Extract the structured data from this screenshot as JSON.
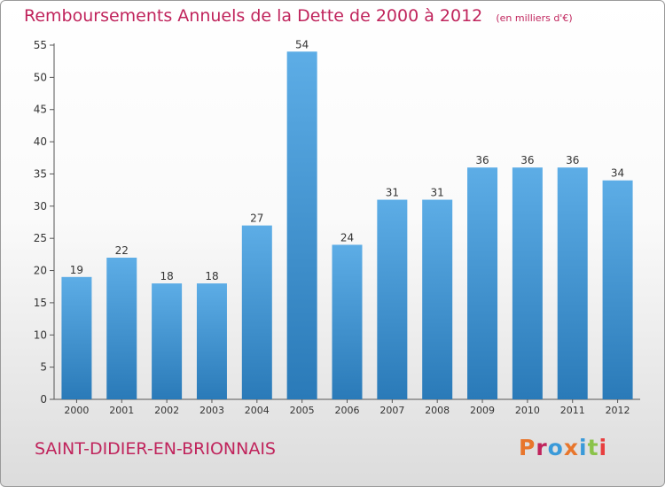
{
  "chart_data": {
    "type": "bar",
    "title": "Remboursements Annuels de la Dette de 2000 à 2012",
    "subtitle": "(en milliers d'€)",
    "categories": [
      "2000",
      "2001",
      "2002",
      "2003",
      "2004",
      "2005",
      "2006",
      "2007",
      "2008",
      "2009",
      "2010",
      "2011",
      "2012"
    ],
    "values": [
      19,
      22,
      18,
      18,
      27,
      54,
      24,
      31,
      31,
      36,
      36,
      36,
      34
    ],
    "ylim": [
      0,
      55
    ],
    "yticks": [
      0,
      5,
      10,
      15,
      20,
      25,
      30,
      35,
      40,
      45,
      50,
      55
    ],
    "grid": false,
    "colors": {
      "bar_top": "#5dade6",
      "bar_bottom": "#2a7ab8",
      "text": "#333333",
      "axis": "#555555"
    }
  },
  "footer": {
    "commune": "SAINT-DIDIER-EN-BRIONNAIS",
    "logo": "Proxiti",
    "logo_colors": [
      "#e8762c",
      "#c0245c",
      "#3a9ad9",
      "#e8762c",
      "#3a9ad9",
      "#8bc34a",
      "#e83e3e"
    ]
  }
}
